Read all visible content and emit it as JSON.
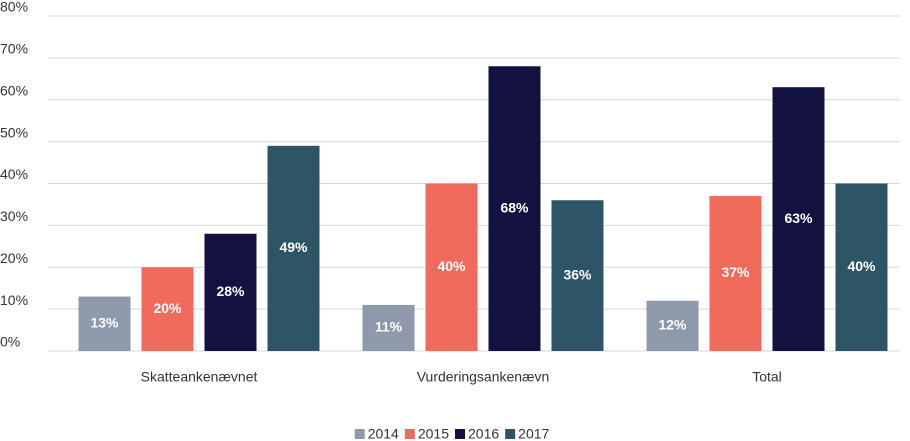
{
  "chart_data": {
    "type": "bar",
    "categories": [
      "Skatteankenævnet",
      "Vurderingsankenævn",
      "Total"
    ],
    "series": [
      {
        "name": "2014",
        "color": "#8e9aab",
        "values": [
          13,
          11,
          12
        ],
        "value_labels": [
          "13%",
          "11%",
          "12%"
        ]
      },
      {
        "name": "2015",
        "color": "#ef6b5b",
        "values": [
          20,
          40,
          37
        ],
        "value_labels": [
          "20%",
          "40%",
          "37%"
        ]
      },
      {
        "name": "2016",
        "color": "#12113f",
        "values": [
          28,
          68,
          63
        ],
        "value_labels": [
          "28%",
          "68%",
          "63%"
        ]
      },
      {
        "name": "2017",
        "color": "#2e5566",
        "values": [
          49,
          36,
          40
        ],
        "value_labels": [
          "49%",
          "36%",
          "40%"
        ]
      }
    ],
    "ylim": [
      0,
      80
    ],
    "yticks": [
      {
        "value": 0,
        "label": "0%"
      },
      {
        "value": 10,
        "label": "10%"
      },
      {
        "value": 20,
        "label": "20%"
      },
      {
        "value": 30,
        "label": "30%"
      },
      {
        "value": 40,
        "label": "40%"
      },
      {
        "value": 50,
        "label": "50%"
      },
      {
        "value": 60,
        "label": "60%"
      },
      {
        "value": 70,
        "label": "70%"
      },
      {
        "value": 80,
        "label": "80%"
      }
    ],
    "grid": true,
    "legend": "bottom"
  }
}
